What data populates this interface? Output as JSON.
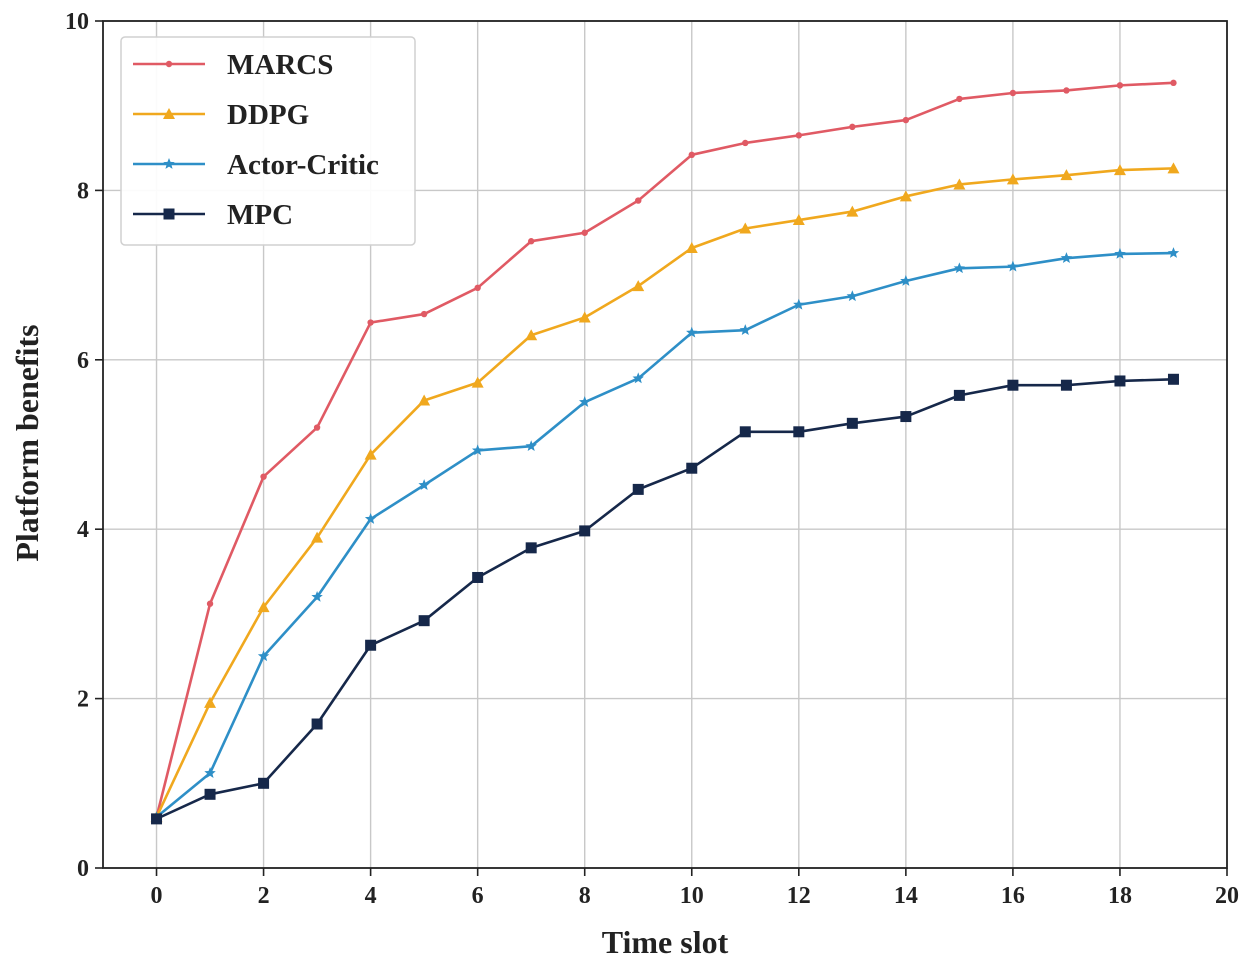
{
  "chart_data": {
    "type": "line",
    "xlabel": "Time slot",
    "ylabel": "Platform benefits",
    "xlim": [
      -10.1,
      20
    ],
    "ylim": [
      0,
      10
    ],
    "x_ticks": [
      0,
      2,
      4,
      6,
      8,
      10,
      12,
      14,
      16,
      18,
      20
    ],
    "y_ticks": [
      0,
      2,
      4,
      6,
      8,
      10
    ],
    "grid": true,
    "legend_position": "top-left",
    "x": [
      0,
      1,
      2,
      3,
      4,
      5,
      6,
      7,
      8,
      9,
      10,
      11,
      12,
      13,
      14,
      15,
      16,
      17,
      18,
      19
    ],
    "series": [
      {
        "name": "MARCS",
        "color": "#e05a64",
        "marker": "dot",
        "values": [
          0.6,
          3.12,
          4.62,
          5.2,
          6.44,
          6.54,
          6.85,
          7.4,
          7.5,
          7.88,
          8.42,
          8.56,
          8.65,
          8.75,
          8.83,
          9.08,
          9.15,
          9.18,
          9.24,
          9.27
        ]
      },
      {
        "name": "DDPG",
        "color": "#f0a81e",
        "marker": "triangle",
        "values": [
          0.6,
          1.95,
          3.08,
          3.9,
          4.88,
          5.52,
          5.73,
          6.29,
          6.5,
          6.87,
          7.32,
          7.55,
          7.65,
          7.75,
          7.93,
          8.07,
          8.13,
          8.18,
          8.24,
          8.26
        ]
      },
      {
        "name": "Actor-Critic",
        "color": "#2e8fc7",
        "marker": "star",
        "values": [
          0.6,
          1.12,
          2.5,
          3.2,
          4.12,
          4.52,
          4.93,
          4.98,
          5.5,
          5.78,
          6.32,
          6.35,
          6.65,
          6.75,
          6.93,
          7.08,
          7.1,
          7.2,
          7.25,
          7.26
        ]
      },
      {
        "name": "MPC",
        "color": "#16284a",
        "marker": "square",
        "values": [
          0.58,
          0.87,
          1.0,
          1.7,
          2.63,
          2.92,
          3.43,
          3.78,
          3.98,
          4.47,
          4.72,
          5.15,
          5.15,
          5.25,
          5.33,
          5.58,
          5.7,
          5.7,
          5.75,
          5.77
        ]
      }
    ]
  }
}
